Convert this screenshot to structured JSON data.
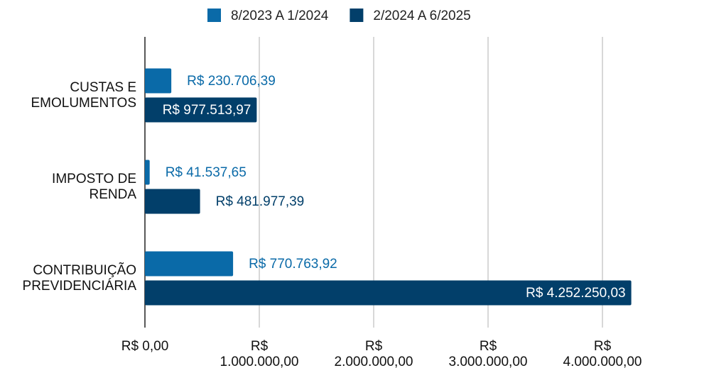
{
  "chart_data": {
    "type": "hbar",
    "categories": [
      "CUSTAS E EMOLUMENTOS",
      "IMPOSTO DE RENDA",
      "CONTRIBUIÇÃO PREVIDENCIÁRIA"
    ],
    "series": [
      {
        "name": "8/2023 A 1/2024",
        "color": "#0a6aa8",
        "values": [
          230706.39,
          41537.65,
          770763.92
        ],
        "value_labels": [
          "R$ 230.706,39",
          "R$ 41.537,65",
          "R$ 770.763,92"
        ]
      },
      {
        "name": "2/2024 A 6/2025",
        "color": "#023f6a",
        "values": [
          977513.97,
          481977.39,
          4252250.03
        ],
        "value_labels": [
          "R$ 977.513,97",
          "R$ 481.977,39",
          "R$ 4.252.250,03"
        ]
      }
    ],
    "xlim": [
      0,
      4000000
    ],
    "xticks": [
      {
        "value": 0,
        "label": "R$ 0,00"
      },
      {
        "value": 1000000,
        "label": "R$ 1.000.000,00"
      },
      {
        "value": 2000000,
        "label": "R$ 2.000.000,00"
      },
      {
        "value": 3000000,
        "label": "R$ 3.000.000,00"
      },
      {
        "value": 4000000,
        "label": "R$ 4.000.000,00"
      }
    ],
    "grid": true,
    "legend": "top"
  }
}
